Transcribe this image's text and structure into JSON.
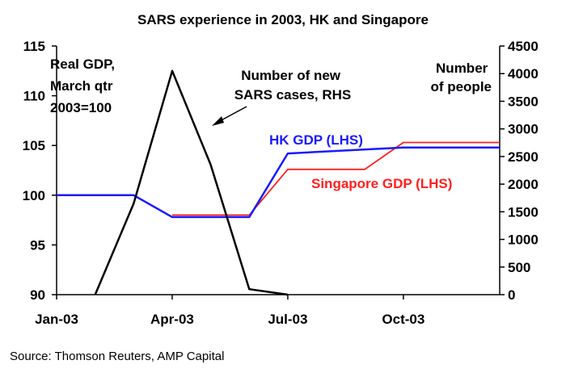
{
  "chart_data": {
    "type": "line",
    "title": "SARS experience in 2003, HK and Singapore",
    "source": "Source: Thomson Reuters, AMP Capital",
    "x_axis": {
      "ticks": [
        {
          "label": "Jan-03",
          "value": 0
        },
        {
          "label": "Apr-03",
          "value": 3
        },
        {
          "label": "Jul-03",
          "value": 6
        },
        {
          "label": "Oct-03",
          "value": 9
        }
      ],
      "range": [
        0,
        11.5
      ]
    },
    "y_left": {
      "range": [
        90,
        115
      ],
      "ticks": [
        "90",
        "95",
        "100",
        "105",
        "110",
        "115"
      ],
      "label_lines": [
        "Real GDP,",
        "March qtr",
        "2003=100"
      ]
    },
    "y_right": {
      "range": [
        0,
        4500
      ],
      "ticks": [
        "0",
        "500",
        "1000",
        "1500",
        "2000",
        "2500",
        "3000",
        "3500",
        "4000",
        "4500"
      ],
      "label_lines": [
        "Number",
        "of people"
      ]
    },
    "series": [
      {
        "name": "HK GDP (LHS)",
        "axis": "left",
        "color": "#1a1aff",
        "points": [
          [
            0,
            100
          ],
          [
            2,
            100
          ],
          [
            3,
            97.8
          ],
          [
            5,
            97.8
          ],
          [
            6,
            104.2
          ],
          [
            9,
            104.8
          ],
          [
            11.5,
            104.8
          ]
        ]
      },
      {
        "name": "Singapore GDP (LHS)",
        "axis": "left",
        "color": "#ff2020",
        "points": [
          [
            3,
            98
          ],
          [
            5,
            98
          ],
          [
            6,
            102.6
          ],
          [
            8,
            102.6
          ],
          [
            9,
            105.3
          ],
          [
            11.5,
            105.3
          ]
        ]
      },
      {
        "name": "Number of new SARS cases, RHS",
        "axis": "right",
        "color": "#000000",
        "points": [
          [
            1,
            0
          ],
          [
            2,
            1650
          ],
          [
            3,
            4050
          ],
          [
            4,
            2350
          ],
          [
            5,
            100
          ],
          [
            6,
            0
          ]
        ]
      }
    ],
    "annotations": {
      "sars_lines": [
        "Number of new",
        "SARS cases, RHS"
      ],
      "hk_label": "HK GDP (LHS)",
      "sg_label": "Singapore GDP (LHS)"
    }
  }
}
